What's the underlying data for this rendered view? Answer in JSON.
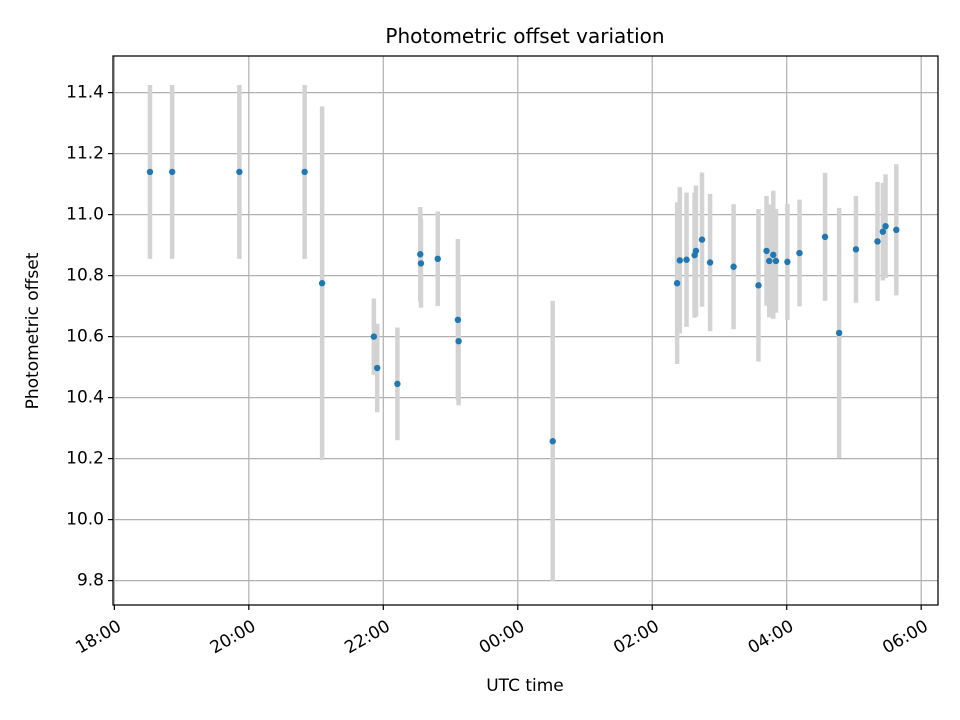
{
  "chart_data": {
    "type": "scatter",
    "title": "Photometric offset variation",
    "xlabel": "UTC time",
    "ylabel": "Photometric offset",
    "x_unit": "hours since 18:00 UTC",
    "xlim": [
      -0.02,
      12.25
    ],
    "ylim": [
      9.72,
      11.52
    ],
    "grid": true,
    "colors": {
      "point": "#1f77b4",
      "errorbar": "#d3d3d3",
      "grid": "#b0b0b0"
    },
    "x_ticks": [
      {
        "value": 0,
        "label": "18:00"
      },
      {
        "value": 2,
        "label": "20:00"
      },
      {
        "value": 4,
        "label": "22:00"
      },
      {
        "value": 6,
        "label": "00:00"
      },
      {
        "value": 8,
        "label": "02:00"
      },
      {
        "value": 10,
        "label": "04:00"
      },
      {
        "value": 12,
        "label": "06:00"
      }
    ],
    "y_ticks": [
      {
        "value": 9.8,
        "label": "9.8"
      },
      {
        "value": 10.0,
        "label": "10.0"
      },
      {
        "value": 10.2,
        "label": "10.2"
      },
      {
        "value": 10.4,
        "label": "10.4"
      },
      {
        "value": 10.6,
        "label": "10.6"
      },
      {
        "value": 10.8,
        "label": "10.8"
      },
      {
        "value": 11.0,
        "label": "11.0"
      },
      {
        "value": 11.2,
        "label": "11.2"
      },
      {
        "value": 11.4,
        "label": "11.4"
      }
    ],
    "points": [
      {
        "x": 0.53,
        "y": 11.14,
        "err": 0.285
      },
      {
        "x": 0.86,
        "y": 11.14,
        "err": 0.285
      },
      {
        "x": 1.86,
        "y": 11.14,
        "err": 0.285
      },
      {
        "x": 2.83,
        "y": 11.14,
        "err": 0.285
      },
      {
        "x": 3.09,
        "y": 10.775,
        "err": 0.58
      },
      {
        "x": 3.86,
        "y": 10.6,
        "err": 0.125
      },
      {
        "x": 3.91,
        "y": 10.497,
        "err": 0.145
      },
      {
        "x": 4.21,
        "y": 10.445,
        "err": 0.185
      },
      {
        "x": 4.55,
        "y": 10.87,
        "err": 0.155
      },
      {
        "x": 4.56,
        "y": 10.84,
        "err": 0.145
      },
      {
        "x": 4.81,
        "y": 10.855,
        "err": 0.155
      },
      {
        "x": 5.11,
        "y": 10.655,
        "err": 0.265
      },
      {
        "x": 5.12,
        "y": 10.585,
        "err": 0.21
      },
      {
        "x": 6.52,
        "y": 10.257,
        "err": 0.46
      },
      {
        "x": 8.37,
        "y": 10.775,
        "err": 0.265
      },
      {
        "x": 8.41,
        "y": 10.85,
        "err": 0.24
      },
      {
        "x": 8.51,
        "y": 10.852,
        "err": 0.22
      },
      {
        "x": 8.63,
        "y": 10.867,
        "err": 0.205
      },
      {
        "x": 8.65,
        "y": 10.881,
        "err": 0.215
      },
      {
        "x": 8.74,
        "y": 10.918,
        "err": 0.22
      },
      {
        "x": 8.86,
        "y": 10.843,
        "err": 0.225
      },
      {
        "x": 9.21,
        "y": 10.829,
        "err": 0.205
      },
      {
        "x": 9.58,
        "y": 10.768,
        "err": 0.25
      },
      {
        "x": 9.7,
        "y": 10.881,
        "err": 0.18
      },
      {
        "x": 9.74,
        "y": 10.848,
        "err": 0.185
      },
      {
        "x": 9.8,
        "y": 10.868,
        "err": 0.21
      },
      {
        "x": 9.84,
        "y": 10.848,
        "err": 0.17
      },
      {
        "x": 10.01,
        "y": 10.845,
        "err": 0.19
      },
      {
        "x": 10.19,
        "y": 10.874,
        "err": 0.175
      },
      {
        "x": 10.57,
        "y": 10.927,
        "err": 0.21
      },
      {
        "x": 10.78,
        "y": 10.612,
        "err": 0.41
      },
      {
        "x": 11.03,
        "y": 10.886,
        "err": 0.175
      },
      {
        "x": 11.35,
        "y": 10.912,
        "err": 0.195
      },
      {
        "x": 11.43,
        "y": 10.944,
        "err": 0.16
      },
      {
        "x": 11.47,
        "y": 10.962,
        "err": 0.17
      },
      {
        "x": 11.63,
        "y": 10.95,
        "err": 0.215
      }
    ]
  }
}
